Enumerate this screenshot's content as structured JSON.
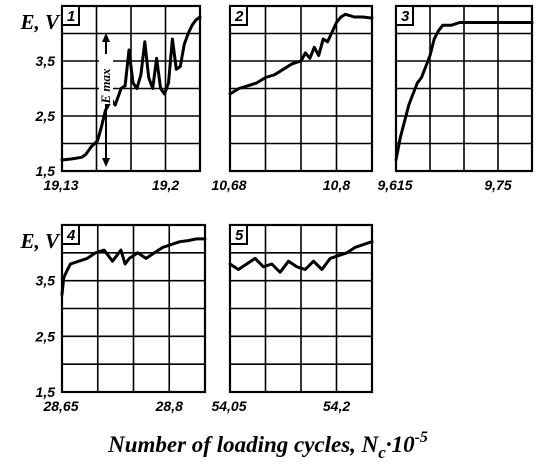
{
  "chart_data": [
    {
      "type": "line",
      "panel_label": "1",
      "ylabel": "E, V",
      "ylim": [
        1.5,
        4.5
      ],
      "yticks": [
        "1,5",
        "2,5",
        "3,5"
      ],
      "xlim": [
        19.13,
        19.2
      ],
      "xticks": [
        "19,13",
        "19,2"
      ],
      "annotation": "E max",
      "series": [
        {
          "x": [
            19.13,
            19.135,
            19.14,
            19.142,
            19.145,
            19.148,
            19.15,
            19.152,
            19.155,
            19.157,
            19.16,
            19.162,
            19.164,
            19.166,
            19.168,
            19.17,
            19.172,
            19.174,
            19.176,
            19.178,
            19.18,
            19.182,
            19.184,
            19.186,
            19.188,
            19.19,
            19.192,
            19.194,
            19.196,
            19.198,
            19.2
          ],
          "y": [
            1.7,
            1.72,
            1.75,
            1.8,
            1.95,
            2.05,
            2.3,
            2.6,
            2.8,
            2.7,
            3.0,
            3.05,
            3.7,
            3.1,
            3.0,
            3.25,
            3.85,
            3.2,
            3.0,
            3.55,
            3.0,
            2.9,
            3.1,
            3.9,
            3.35,
            3.4,
            3.8,
            4.0,
            4.15,
            4.25,
            4.3
          ]
        }
      ]
    },
    {
      "type": "line",
      "panel_label": "2",
      "ylim": [
        1.5,
        4.5
      ],
      "xlim": [
        10.68,
        10.84
      ],
      "xticks": [
        "10,68",
        "10,8"
      ],
      "series": [
        {
          "x": [
            10.68,
            10.69,
            10.7,
            10.71,
            10.72,
            10.73,
            10.74,
            10.75,
            10.76,
            10.765,
            10.77,
            10.775,
            10.78,
            10.785,
            10.79,
            10.8,
            10.805,
            10.81,
            10.82,
            10.83,
            10.84
          ],
          "y": [
            2.9,
            3.0,
            3.05,
            3.1,
            3.2,
            3.25,
            3.35,
            3.45,
            3.5,
            3.65,
            3.55,
            3.75,
            3.6,
            3.9,
            3.85,
            4.2,
            4.3,
            4.35,
            4.3,
            4.3,
            4.28
          ]
        }
      ]
    },
    {
      "type": "line",
      "panel_label": "3",
      "ylim": [
        1.5,
        4.5
      ],
      "xlim": [
        9.615,
        9.775
      ],
      "xticks": [
        "9,615",
        "9,75"
      ],
      "series": [
        {
          "x": [
            9.615,
            9.62,
            9.625,
            9.63,
            9.635,
            9.64,
            9.645,
            9.65,
            9.655,
            9.66,
            9.665,
            9.67,
            9.68,
            9.69,
            9.7,
            9.72,
            9.74,
            9.76,
            9.775
          ],
          "y": [
            1.7,
            2.1,
            2.4,
            2.7,
            2.9,
            3.1,
            3.2,
            3.4,
            3.6,
            3.9,
            4.05,
            4.15,
            4.15,
            4.2,
            4.2,
            4.2,
            4.2,
            4.2,
            4.2
          ]
        }
      ]
    },
    {
      "type": "line",
      "panel_label": "4",
      "ylabel": "E, V",
      "ylim": [
        1.5,
        4.5
      ],
      "yticks": [
        "1,5",
        "2,5",
        "3,5"
      ],
      "xlim": [
        28.65,
        28.82
      ],
      "xticks": [
        "28,65",
        "28,8"
      ],
      "series": [
        {
          "x": [
            28.65,
            28.652,
            28.655,
            28.66,
            28.67,
            28.68,
            28.69,
            28.7,
            28.71,
            28.72,
            28.725,
            28.73,
            28.74,
            28.75,
            28.76,
            28.77,
            28.78,
            28.79,
            28.8,
            28.81,
            28.82
          ],
          "y": [
            3.25,
            3.55,
            3.65,
            3.8,
            3.85,
            3.9,
            4.0,
            4.05,
            3.85,
            4.05,
            3.8,
            3.9,
            4.0,
            3.9,
            4.0,
            4.1,
            4.15,
            4.2,
            4.22,
            4.25,
            4.25
          ]
        }
      ]
    },
    {
      "type": "line",
      "panel_label": "5",
      "ylim": [
        1.5,
        4.5
      ],
      "xlim": [
        54.05,
        54.22
      ],
      "xticks": [
        "54,05",
        "54,2"
      ],
      "series": [
        {
          "x": [
            54.05,
            54.06,
            54.07,
            54.08,
            54.09,
            54.1,
            54.11,
            54.12,
            54.13,
            54.14,
            54.15,
            54.16,
            54.17,
            54.18,
            54.19,
            54.2,
            54.21,
            54.22
          ],
          "y": [
            3.8,
            3.7,
            3.8,
            3.9,
            3.75,
            3.8,
            3.65,
            3.85,
            3.75,
            3.7,
            3.85,
            3.7,
            3.9,
            3.95,
            4.0,
            4.1,
            4.15,
            4.2
          ]
        }
      ]
    }
  ],
  "xaxis_title": {
    "main": "Number of loading cycles, N",
    "sub": "c",
    "mid": "·10",
    "sup": "-5"
  }
}
